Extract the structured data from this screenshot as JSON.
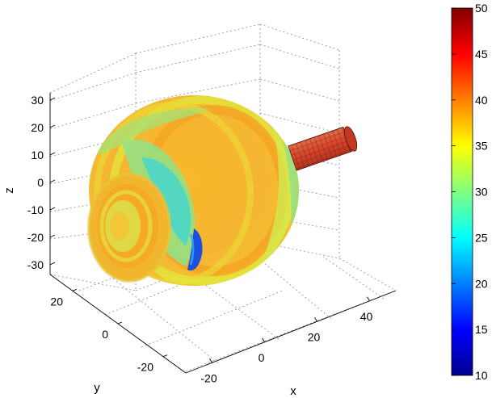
{
  "chart_data": {
    "type": "surface3d",
    "title": "",
    "xlabel": "x",
    "ylabel": "y",
    "zlabel": "z",
    "x_ticks": [
      -20,
      0,
      20,
      40
    ],
    "y_ticks": [
      20,
      0,
      -20
    ],
    "z_ticks": [
      30,
      20,
      10,
      0,
      -10,
      -20,
      -30
    ],
    "xlim": [
      -30,
      50
    ],
    "ylim": [
      -30,
      30
    ],
    "zlim": [
      -35,
      35
    ],
    "grid": true,
    "colorbar": {
      "ticks": [
        50,
        45,
        40,
        35,
        30,
        25,
        20,
        15,
        10
      ],
      "range": [
        10,
        50
      ],
      "colormap": "jet",
      "position": "right"
    },
    "colors": {
      "jet": [
        "#00008f",
        "#0000ff",
        "#0080ff",
        "#00ffff",
        "#80ff80",
        "#ffff00",
        "#ff8000",
        "#ff0000",
        "#800000"
      ],
      "rod": "#d9452b",
      "rod_edge": "#4a1208"
    }
  }
}
